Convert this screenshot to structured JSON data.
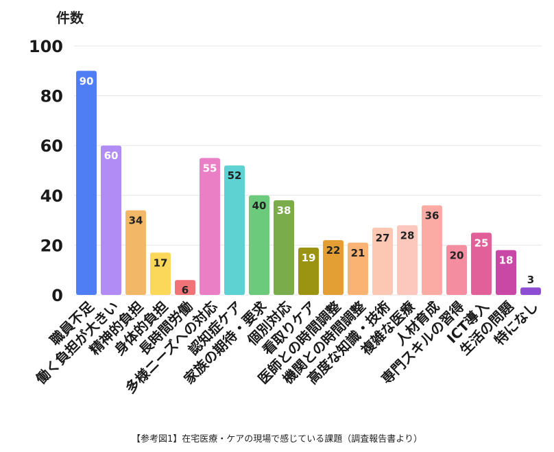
{
  "chart_data": {
    "type": "bar",
    "ylabel": "件数",
    "ylim": [
      0,
      100
    ],
    "yticks": [
      0,
      20,
      40,
      60,
      80,
      100
    ],
    "grid": true,
    "caption": "【参考図1】在宅医療・ケアの現場で感じている課題（調査報告書より）",
    "categories": [
      "職員不足",
      "働く負担が大きい",
      "精神的負担",
      "身体的負担",
      "長時間労働",
      "多様ニーズへの対応",
      "認知症ケア",
      "家族の期待・要求",
      "個別対応",
      "看取りケア",
      "医師との時間調整",
      "機関との時間調整",
      "高度な知識・技術",
      "複雑な医療",
      "人材育成",
      "専門スキルの習得",
      "ICT導入",
      "生活の問題",
      "特になし"
    ],
    "values": [
      90,
      60,
      34,
      17,
      6,
      55,
      52,
      40,
      38,
      19,
      22,
      21,
      27,
      28,
      36,
      20,
      25,
      18,
      3
    ],
    "colors": [
      "#4f7df3",
      "#b18cf4",
      "#f2b868",
      "#fbd85a",
      "#f07378",
      "#ea7fc6",
      "#5ed2d2",
      "#6cca7c",
      "#7aac4c",
      "#9b9412",
      "#e39f33",
      "#fbb373",
      "#fcc8b4",
      "#fcc8bd",
      "#fbaaa4",
      "#f58da0",
      "#e2609a",
      "#c948a6",
      "#8e4ed4"
    ],
    "label_colors": [
      "#ffffff",
      "#ffffff",
      "#222222",
      "#222222",
      "#222222",
      "#ffffff",
      "#222222",
      "#222222",
      "#ffffff",
      "#ffffff",
      "#222222",
      "#222222",
      "#222222",
      "#222222",
      "#222222",
      "#222222",
      "#ffffff",
      "#ffffff",
      "#222222"
    ]
  }
}
